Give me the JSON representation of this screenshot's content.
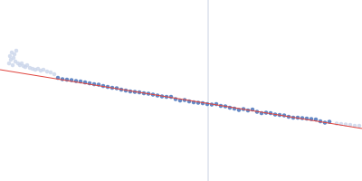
{
  "chart_data": {
    "type": "scatter",
    "xlim": [
      0,
      400
    ],
    "ylim": [
      0,
      200
    ],
    "tick_labels": false,
    "grid": false,
    "vline": 230,
    "vline_color": "#c9d1e2",
    "series": [
      {
        "type": "scatter",
        "color": "#c9d4ea",
        "marker": "circle",
        "x": [
          10,
          11,
          12,
          13,
          14,
          15,
          16,
          17,
          18,
          20,
          22,
          24,
          26,
          28,
          30,
          33,
          36,
          39,
          42,
          45,
          48,
          52,
          56,
          60,
          372,
          377,
          382,
          387,
          392,
          397
        ],
        "values": [
          130,
          138,
          134,
          142,
          128,
          136,
          140,
          132,
          144,
          130,
          128,
          130,
          127,
          126,
          128,
          125,
          124,
          123,
          124,
          122,
          123,
          121,
          120,
          118,
          63.5,
          63,
          62.5,
          62,
          61,
          61
        ]
      },
      {
        "type": "scatter",
        "color": "#3d6cb8",
        "marker": "circle",
        "x": [
          64,
          69,
          74,
          79,
          84,
          89,
          94,
          99,
          104,
          109,
          114,
          119,
          124,
          129,
          134,
          139,
          144,
          149,
          154,
          159,
          164,
          169,
          174,
          179,
          184,
          189,
          194,
          199,
          204,
          209,
          214,
          219,
          224,
          229,
          234,
          239,
          244,
          249,
          254,
          259,
          264,
          269,
          274,
          279,
          284,
          289,
          294,
          299,
          304,
          309,
          314,
          319,
          324,
          329,
          334,
          339,
          344,
          349,
          354,
          359,
          364
        ],
        "values": [
          114,
          112.5,
          112,
          111.5,
          110.5,
          110,
          109,
          108,
          107,
          106.5,
          105,
          104,
          103,
          102.5,
          101,
          100,
          99,
          98.5,
          98,
          97,
          96.5,
          95.5,
          94.5,
          93.5,
          93,
          93,
          90.5,
          89,
          89.5,
          88,
          87,
          86.5,
          86,
          85,
          84.5,
          85,
          83,
          82.5,
          81,
          80,
          78.5,
          79.5,
          78,
          79,
          76.5,
          75,
          75.5,
          75,
          73.5,
          73,
          72.5,
          71,
          70,
          70,
          69.5,
          69,
          68.5,
          68,
          66,
          64.5,
          65.5
        ]
      },
      {
        "type": "line",
        "color": "#e0453f",
        "line_style": "solid",
        "x": [
          0,
          400
        ],
        "values": [
          123,
          58
        ]
      }
    ]
  }
}
